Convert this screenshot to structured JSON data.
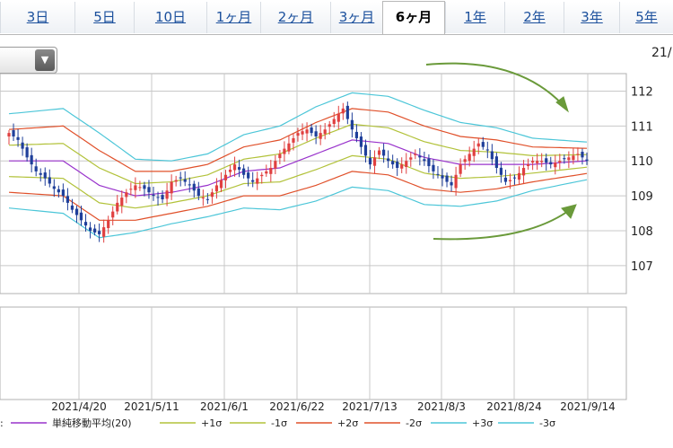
{
  "tabs": [
    {
      "label": "3日",
      "active": false
    },
    {
      "label": "5日",
      "active": false
    },
    {
      "label": "10日",
      "active": false
    },
    {
      "label": "1ヶ月",
      "active": false
    },
    {
      "label": "2ヶ月",
      "active": false
    },
    {
      "label": "3ヶ月",
      "active": false
    },
    {
      "label": "6ヶ月",
      "active": true
    },
    {
      "label": "1年",
      "active": false
    },
    {
      "label": "2年",
      "active": false
    },
    {
      "label": "3年",
      "active": false
    },
    {
      "label": "5年",
      "active": false
    }
  ],
  "dropdown": {
    "icon": "triangle-down-icon",
    "glyph": "▼"
  },
  "corner_label": "21/",
  "chart_data": {
    "type": "candlestick",
    "ylim": [
      106.2,
      112.5
    ],
    "yticks": [
      107,
      108,
      109,
      110,
      111,
      112
    ],
    "ytick_labels": [
      "107",
      "108",
      "109",
      "110",
      "111",
      "112"
    ],
    "x_labels": [
      "2021/4/20",
      "2021/5/11",
      "2021/6/1",
      "2021/6/22",
      "2021/7/13",
      "2021/8/3",
      "2021/8/24",
      "2021/9/14"
    ],
    "grid": true,
    "legend_prefix": ":",
    "legend": [
      {
        "label": "単純移動平均(20)",
        "color": "#9933cc"
      },
      {
        "label": "+1σ",
        "color": "#b2c23a"
      },
      {
        "label": "-1σ",
        "color": "#b2c23a"
      },
      {
        "label": "+2σ",
        "color": "#e0502a"
      },
      {
        "label": "-2σ",
        "color": "#e0502a"
      },
      {
        "label": "+3σ",
        "color": "#4cc6d8"
      },
      {
        "label": "-3σ",
        "color": "#4cc6d8"
      }
    ],
    "colors": {
      "up": "#e04040",
      "down": "#1f3f9a",
      "grid": "#c8c8c8",
      "arrow": "#6a9a3a"
    },
    "anchors": {
      "close": [
        [
          0,
          110.8
        ],
        [
          2,
          110.6
        ],
        [
          4,
          110.1
        ],
        [
          6,
          109.7
        ],
        [
          8,
          109.5
        ],
        [
          10,
          109.2
        ],
        [
          12,
          109.0
        ],
        [
          14,
          108.6
        ],
        [
          16,
          108.3
        ],
        [
          18,
          108.0
        ],
        [
          20,
          107.9
        ],
        [
          22,
          108.3
        ],
        [
          24,
          108.8
        ],
        [
          26,
          109.1
        ],
        [
          28,
          109.3
        ],
        [
          30,
          109.2
        ],
        [
          32,
          109.0
        ],
        [
          34,
          108.9
        ],
        [
          36,
          109.4
        ],
        [
          38,
          109.5
        ],
        [
          40,
          109.3
        ],
        [
          42,
          109.0
        ],
        [
          44,
          108.9
        ],
        [
          46,
          109.3
        ],
        [
          48,
          109.6
        ],
        [
          50,
          109.9
        ],
        [
          52,
          109.6
        ],
        [
          54,
          109.4
        ],
        [
          56,
          109.6
        ],
        [
          58,
          109.8
        ],
        [
          60,
          110.2
        ],
        [
          62,
          110.5
        ],
        [
          64,
          110.8
        ],
        [
          66,
          110.9
        ],
        [
          68,
          110.7
        ],
        [
          70,
          110.9
        ],
        [
          72,
          111.2
        ],
        [
          74,
          111.5
        ],
        [
          76,
          110.9
        ],
        [
          78,
          110.4
        ],
        [
          80,
          109.9
        ],
        [
          82,
          110.3
        ],
        [
          84,
          110.0
        ],
        [
          86,
          109.8
        ],
        [
          88,
          110.0
        ],
        [
          90,
          110.2
        ],
        [
          92,
          110.0
        ],
        [
          94,
          109.7
        ],
        [
          96,
          109.5
        ],
        [
          98,
          109.3
        ],
        [
          100,
          109.9
        ],
        [
          102,
          110.2
        ],
        [
          104,
          110.5
        ],
        [
          106,
          110.3
        ],
        [
          108,
          109.8
        ],
        [
          110,
          109.4
        ],
        [
          112,
          109.5
        ],
        [
          114,
          109.8
        ],
        [
          116,
          110.0
        ],
        [
          118,
          110.0
        ],
        [
          120,
          109.9
        ],
        [
          122,
          110.0
        ],
        [
          124,
          110.1
        ],
        [
          126,
          110.2
        ],
        [
          128,
          110.0
        ]
      ],
      "mid": [
        [
          0,
          110.0
        ],
        [
          12,
          110.0
        ],
        [
          20,
          109.3
        ],
        [
          28,
          109.0
        ],
        [
          36,
          109.1
        ],
        [
          44,
          109.3
        ],
        [
          52,
          109.7
        ],
        [
          60,
          109.8
        ],
        [
          68,
          110.2
        ],
        [
          76,
          110.6
        ],
        [
          84,
          110.5
        ],
        [
          92,
          110.1
        ],
        [
          100,
          109.9
        ],
        [
          108,
          109.9
        ],
        [
          116,
          109.9
        ],
        [
          128,
          110.0
        ]
      ],
      "sigma": [
        [
          0,
          0.45
        ],
        [
          12,
          0.5
        ],
        [
          20,
          0.5
        ],
        [
          28,
          0.35
        ],
        [
          36,
          0.3
        ],
        [
          44,
          0.3
        ],
        [
          52,
          0.35
        ],
        [
          60,
          0.4
        ],
        [
          68,
          0.45
        ],
        [
          76,
          0.45
        ],
        [
          84,
          0.45
        ],
        [
          92,
          0.45
        ],
        [
          100,
          0.4
        ],
        [
          108,
          0.35
        ],
        [
          116,
          0.25
        ],
        [
          128,
          0.18
        ]
      ]
    },
    "n_candles": 129
  }
}
